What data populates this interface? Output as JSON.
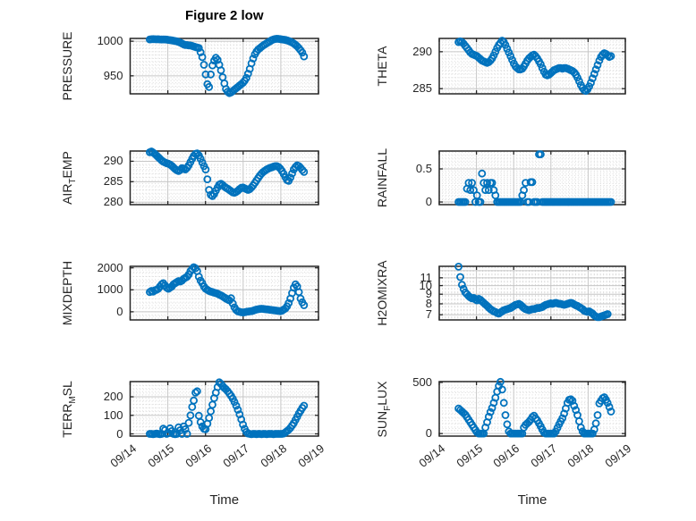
{
  "title": "Figure 2 low",
  "xlabel": "Time",
  "x_tick_labels": [
    "09/14",
    "09/15",
    "09/16",
    "09/17",
    "09/18",
    "09/19"
  ],
  "colors": {
    "marker": "#0072BD",
    "axes": "#262626",
    "grid_major": "#c6c6c6",
    "grid_minor": "#dadada",
    "background": "#ffffff",
    "title_color": "#000000"
  },
  "chart_data": [
    {
      "type": "scatter",
      "name": "pressure",
      "ylabel": [
        {
          "t": "PRESSURE"
        }
      ],
      "row": 0,
      "col": 0,
      "scale": "linear",
      "xlim": [
        0,
        5
      ],
      "ylim": [
        924,
        1004
      ],
      "yticks": [
        {
          "v": 950,
          "label": "950"
        },
        {
          "v": 1000,
          "label": "1000"
        }
      ],
      "yminor": 5,
      "series": {
        "x0": 0.52,
        "dx": 0.045,
        "y": [
          1002.6,
          1002.8,
          1003,
          1002.9,
          1002.7,
          1002.8,
          1002.6,
          1002.5,
          1002.6,
          1002.4,
          1002.3,
          1002,
          1001.6,
          1001.2,
          1000.8,
          1000.3,
          999.7,
          999,
          998,
          996.8,
          995.5,
          994.5,
          994.5,
          994,
          993.8,
          993.2,
          992.4,
          991.6,
          991,
          990.2,
          984,
          977,
          966,
          952,
          938,
          934,
          952,
          965,
          972,
          976,
          973,
          966,
          958,
          948,
          939,
          931,
          927,
          925,
          926,
          928,
          930,
          932,
          934,
          936,
          938,
          940,
          943,
          947,
          953,
          960,
          968,
          975,
          981,
          985,
          988,
          990,
          992,
          994,
          995.5,
          997,
          998.5,
          1000,
          1001.5,
          1002.5,
          1003.2,
          1003.5,
          1003.3,
          1003,
          1002.6,
          1002.2,
          1001.8,
          1001.2,
          1000.4,
          999.4,
          998.2,
          996.6,
          994.8,
          992.6,
          990,
          987,
          983.5,
          978
        ]
      }
    },
    {
      "type": "scatter",
      "name": "theta",
      "ylabel": [
        {
          "t": "THETA"
        }
      ],
      "row": 0,
      "col": 1,
      "scale": "linear",
      "xlim": [
        0,
        5
      ],
      "ylim": [
        284.3,
        291.8
      ],
      "yticks": [
        {
          "v": 285,
          "label": "285"
        },
        {
          "v": 290,
          "label": "290"
        }
      ],
      "yminor": 0.5,
      "series": {
        "x0": 0.52,
        "dx": 0.045,
        "y": [
          291.3,
          291.4,
          291.3,
          291.1,
          290.8,
          290.5,
          290.2,
          289.9,
          289.7,
          289.6,
          289.5,
          289.4,
          289.2,
          289,
          288.8,
          288.7,
          288.6,
          288.5,
          288.6,
          288.8,
          289.1,
          289.5,
          290,
          290.5,
          290.9,
          291.2,
          291.5,
          291.3,
          290.9,
          290.4,
          289.9,
          289.4,
          288.9,
          288.4,
          288,
          287.8,
          287.6,
          287.6,
          287.7,
          288,
          288.4,
          288.8,
          289.1,
          289.3,
          289.5,
          289.6,
          289.4,
          289.1,
          288.7,
          288.3,
          287.8,
          287.3,
          286.9,
          286.8,
          286.9,
          287.1,
          287.3,
          287.5,
          287.6,
          287.7,
          287.8,
          287.8,
          287.7,
          287.8,
          287.8,
          287.7,
          287.6,
          287.5,
          287.4,
          287.2,
          286.9,
          286.5,
          286,
          285.5,
          285.1,
          284.8,
          284.7,
          284.9,
          285.3,
          285.8,
          286.4,
          287,
          287.6,
          288.2,
          288.8,
          289.3,
          289.6,
          289.8,
          289.7,
          289.5,
          289.3,
          289.4
        ]
      }
    },
    {
      "type": "scatter",
      "name": "air-temp",
      "ylabel": [
        {
          "t": "AIR"
        },
        {
          "t": "T",
          "sub": true
        },
        {
          "t": "EMP"
        }
      ],
      "row": 1,
      "col": 0,
      "scale": "linear",
      "xlim": [
        0,
        5
      ],
      "ylim": [
        279.4,
        292.5
      ],
      "yticks": [
        {
          "v": 280,
          "label": "280"
        },
        {
          "v": 285,
          "label": "285"
        },
        {
          "v": 290,
          "label": "290"
        }
      ],
      "yminor": 1,
      "series": {
        "x0": 0.52,
        "dx": 0.045,
        "y": [
          292.2,
          292.4,
          292.1,
          291.8,
          291.4,
          291,
          290.6,
          290.2,
          289.9,
          289.7,
          289.5,
          289.4,
          289.2,
          288.9,
          288.5,
          288.1,
          287.8,
          287.6,
          287.9,
          288.3,
          288.2,
          288,
          288.4,
          289,
          289.8,
          290.6,
          291.3,
          291.8,
          291.9,
          291.4,
          290.6,
          289.7,
          288.8,
          288,
          285.6,
          283,
          281.8,
          281.5,
          282,
          282.8,
          283.6,
          284.3,
          284.5,
          284.2,
          283.8,
          283.5,
          283.3,
          283,
          282.7,
          282.4,
          282.3,
          282.5,
          282.8,
          283.2,
          283.5,
          283.6,
          283.4,
          283.2,
          283,
          283.2,
          283.6,
          284.1,
          284.7,
          285.3,
          285.9,
          286.5,
          287,
          287.4,
          287.7,
          288,
          288.2,
          288.4,
          288.5,
          288.7,
          288.8,
          288.8,
          288.6,
          288.2,
          287.6,
          286.9,
          286.1,
          285.4,
          285.2,
          286,
          287,
          288,
          288.6,
          289,
          288.8,
          288.4,
          287.9,
          287.4
        ]
      }
    },
    {
      "type": "scatter",
      "name": "rainfall",
      "ylabel": [
        {
          "t": "RAINFALL"
        }
      ],
      "row": 1,
      "col": 1,
      "scale": "linear",
      "xlim": [
        0,
        5
      ],
      "ylim": [
        -0.04,
        0.77
      ],
      "yticks": [
        {
          "v": 0,
          "label": "0"
        },
        {
          "v": 0.5,
          "label": "0.5"
        }
      ],
      "yminor": 0.05,
      "series": {
        "x0": 0.52,
        "dx": 0.045,
        "y": [
          0,
          0,
          0,
          0,
          0,
          0.2,
          0.29,
          0.18,
          0.29,
          0.18,
          0,
          0.1,
          0,
          0,
          0.43,
          0.29,
          0.18,
          0.29,
          0.18,
          0.29,
          0.29,
          0.18,
          0.1,
          0,
          0,
          0,
          0,
          0,
          0,
          0,
          0,
          0,
          0,
          0,
          0,
          0,
          0,
          0,
          0.1,
          0.18,
          0.29,
          0,
          0,
          0.3,
          0.3,
          0,
          0,
          0,
          0.72,
          0.72,
          0,
          0,
          0,
          0,
          0,
          0,
          0,
          0,
          0,
          0,
          0,
          0,
          0,
          0,
          0,
          0,
          0,
          0,
          0,
          0,
          0,
          0,
          0,
          0,
          0,
          0,
          0,
          0,
          0,
          0,
          0,
          0,
          0,
          0,
          0,
          0,
          0,
          0,
          0,
          0,
          0,
          0
        ]
      }
    },
    {
      "type": "scatter",
      "name": "mixdepth",
      "ylabel": [
        {
          "t": "MIXDEPTH"
        }
      ],
      "row": 2,
      "col": 0,
      "scale": "linear",
      "xlim": [
        0,
        5
      ],
      "ylim": [
        -370,
        2070
      ],
      "yticks": [
        {
          "v": 0,
          "label": "0"
        },
        {
          "v": 1000,
          "label": "1000"
        },
        {
          "v": 2000,
          "label": "2000"
        }
      ],
      "yminor": 200,
      "series": {
        "x0": 0.52,
        "dx": 0.045,
        "y": [
          900,
          950,
          920,
          980,
          1000,
          1050,
          1150,
          1250,
          1300,
          1200,
          1100,
          1050,
          1100,
          1150,
          1250,
          1300,
          1350,
          1400,
          1380,
          1420,
          1500,
          1550,
          1600,
          1700,
          1850,
          1950,
          2030,
          1980,
          1850,
          1600,
          1420,
          1300,
          1150,
          1050,
          1000,
          950,
          920,
          900,
          870,
          850,
          820,
          780,
          750,
          700,
          650,
          600,
          560,
          520,
          620,
          380,
          200,
          80,
          20,
          0,
          -20,
          -30,
          -20,
          0,
          10,
          20,
          30,
          50,
          80,
          100,
          120,
          130,
          140,
          130,
          120,
          110,
          100,
          90,
          80,
          70,
          60,
          50,
          40,
          30,
          50,
          100,
          150,
          250,
          400,
          600,
          850,
          1100,
          1250,
          1150,
          900,
          600,
          430,
          300
        ]
      }
    },
    {
      "type": "scatter",
      "name": "h2omixra",
      "ylabel": [
        {
          "t": "H2OMIXRA"
        }
      ],
      "row": 2,
      "col": 1,
      "scale": "log",
      "xlim": [
        0,
        5
      ],
      "ylim": [
        6.57,
        12.66
      ],
      "ygrid": [
        7,
        8,
        9,
        10,
        11,
        12
      ],
      "yticks": [
        {
          "v": 7,
          "label": "7"
        },
        {
          "v": 8,
          "label": "8"
        },
        {
          "v": 9,
          "label": "9"
        },
        {
          "v": 10,
          "label": "10"
        },
        {
          "v": 11,
          "label": "11"
        }
      ],
      "yminor": null,
      "xminor": 0.0833,
      "minor_dash": "2.2 1.8",
      "series": {
        "x0": 0.52,
        "dx": 0.045,
        "y": [
          12.6,
          11.1,
          10.1,
          9.6,
          9.2,
          9,
          8.8,
          8.65,
          8.55,
          8.6,
          8.45,
          8.35,
          8.5,
          8.4,
          8.25,
          8.1,
          7.95,
          7.8,
          7.65,
          7.5,
          7.4,
          7.3,
          7.25,
          7.15,
          7.1,
          7.2,
          7.3,
          7.4,
          7.45,
          7.5,
          7.55,
          7.6,
          7.7,
          7.8,
          7.9,
          7.95,
          8,
          7.9,
          7.75,
          7.6,
          7.5,
          7.45,
          7.4,
          7.45,
          7.5,
          7.5,
          7.55,
          7.6,
          7.6,
          7.65,
          7.7,
          7.8,
          7.9,
          7.95,
          8,
          8.05,
          8,
          8.05,
          8.1,
          8.05,
          8,
          8,
          7.95,
          7.9,
          7.95,
          8,
          8.05,
          8.1,
          8.05,
          7.95,
          7.85,
          7.8,
          7.7,
          7.6,
          7.5,
          7.35,
          7.3,
          7.25,
          7.3,
          7.2,
          7.1,
          6.95,
          6.85,
          6.8,
          6.8,
          6.85,
          6.9,
          6.95,
          7,
          7.05,
          null,
          null
        ]
      }
    },
    {
      "type": "scatter",
      "name": "terr-msl",
      "ylabel": [
        {
          "t": "TERR"
        },
        {
          "t": "M",
          "sub": true
        },
        {
          "t": "SL"
        }
      ],
      "row": 3,
      "col": 0,
      "scale": "linear",
      "xlim": [
        0,
        5
      ],
      "ylim": [
        -12,
        282
      ],
      "yticks": [
        {
          "v": 0,
          "label": "0"
        },
        {
          "v": 100,
          "label": "100"
        },
        {
          "v": 200,
          "label": "200"
        }
      ],
      "yminor": 20,
      "series": {
        "x0": 0.52,
        "dx": 0.045,
        "y": [
          0,
          0,
          -2,
          0,
          2,
          0,
          -2,
          0,
          28,
          20,
          0,
          5,
          30,
          15,
          0,
          -2,
          0,
          35,
          20,
          0,
          40,
          25,
          0,
          60,
          100,
          145,
          180,
          222,
          230,
          98,
          63,
          40,
          27,
          25,
          55,
          86,
          122,
          157,
          193,
          222,
          252,
          278,
          270,
          258,
          248,
          240,
          230,
          218,
          205,
          190,
          172,
          152,
          130,
          105,
          78,
          50,
          27,
          10,
          2,
          0,
          -2,
          0,
          0,
          -2,
          0,
          0,
          -2,
          0,
          0,
          -2,
          0,
          0,
          0,
          -2,
          0,
          0,
          0,
          0,
          0,
          2,
          8,
          15,
          22,
          32,
          45,
          58,
          75,
          92,
          110,
          125,
          140,
          152
        ]
      }
    },
    {
      "type": "scatter",
      "name": "sun-flux",
      "ylabel": [
        {
          "t": "SUN"
        },
        {
          "t": "F",
          "sub": true
        },
        {
          "t": "LUX"
        }
      ],
      "row": 3,
      "col": 1,
      "scale": "linear",
      "xlim": [
        0,
        5
      ],
      "ylim": [
        -25,
        508
      ],
      "yticks": [
        {
          "v": 0,
          "label": "0"
        },
        {
          "v": 500,
          "label": "500"
        }
      ],
      "yminor": 50,
      "series": {
        "x0": 0.52,
        "dx": 0.045,
        "y": [
          245,
          230,
          215,
          200,
          185,
          160,
          135,
          110,
          85,
          60,
          35,
          12,
          0,
          0,
          0,
          0,
          60,
          110,
          165,
          210,
          250,
          300,
          350,
          410,
          465,
          505,
          430,
          300,
          180,
          90,
          20,
          0,
          0,
          0,
          0,
          0,
          0,
          0,
          0,
          60,
          85,
          100,
          115,
          135,
          160,
          175,
          150,
          130,
          100,
          70,
          40,
          10,
          0,
          0,
          0,
          0,
          0,
          0,
          20,
          55,
          90,
          120,
          150,
          195,
          245,
          300,
          330,
          335,
          320,
          270,
          230,
          180,
          120,
          60,
          20,
          0,
          0,
          0,
          0,
          0,
          0,
          40,
          100,
          180,
          295,
          320,
          345,
          355,
          330,
          300,
          260,
          215
        ]
      }
    }
  ]
}
